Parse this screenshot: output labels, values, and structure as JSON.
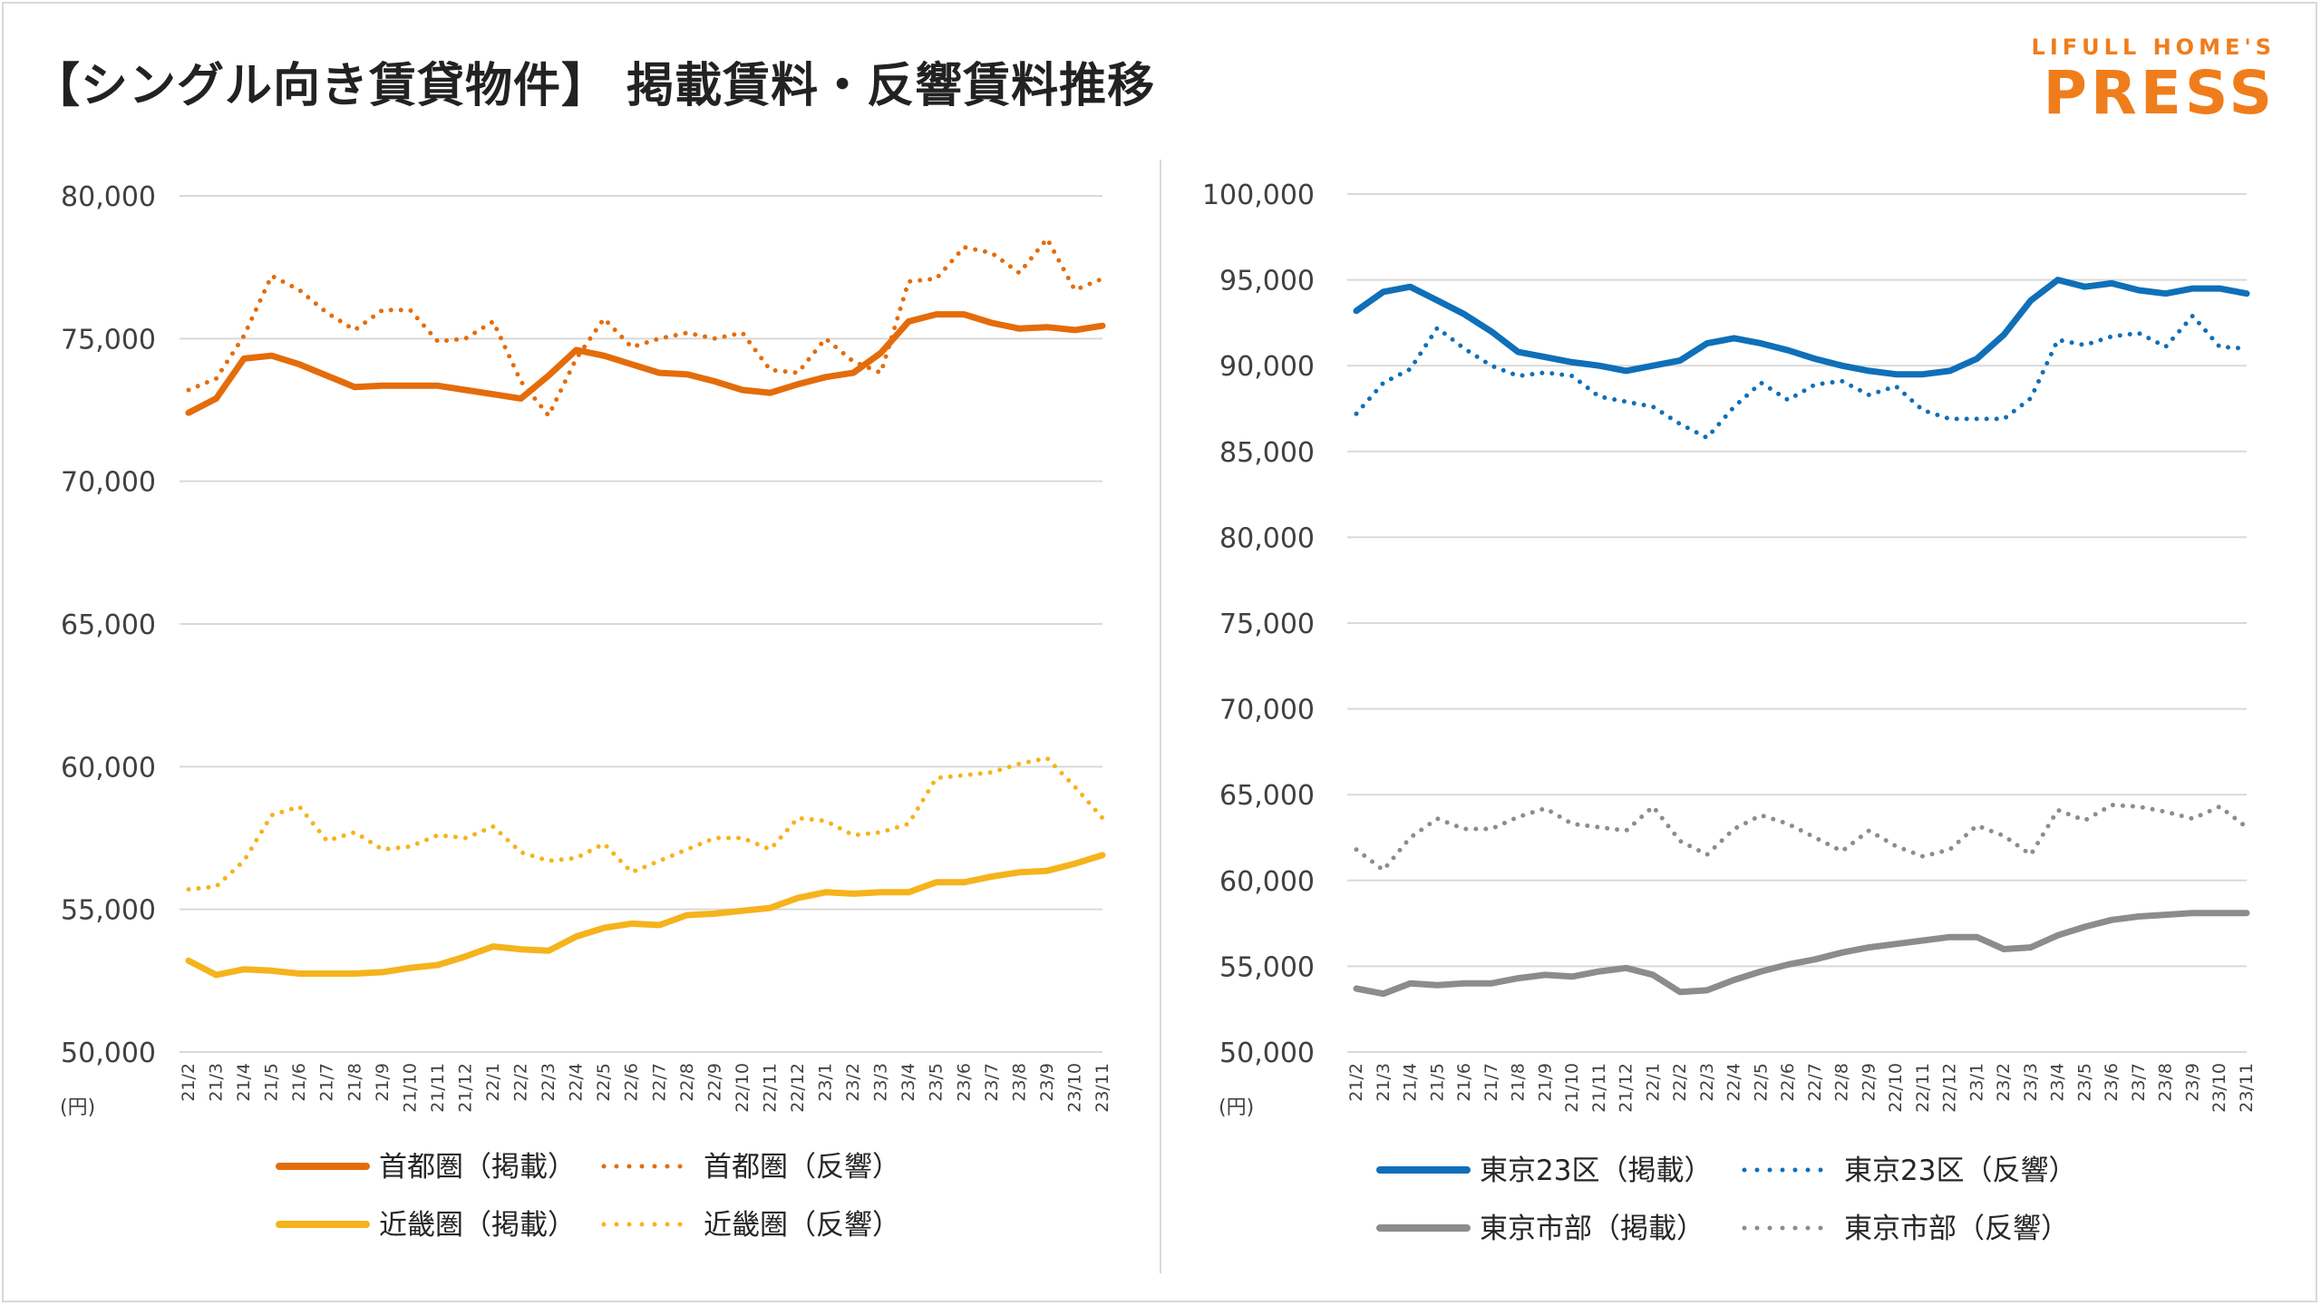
{
  "title": "【シングル向き賃貸物件】 掲載賃料・反響賃料推移",
  "logo": {
    "top": "LIFULL HOME'S",
    "main": "PRESS"
  },
  "colors": {
    "shuto": "#e46c0a",
    "kinki": "#f5b31c",
    "tokyo23": "#0f6fb8",
    "tokyoshi": "#8c8c8c",
    "grid": "#d9d9d9",
    "axis_text": "#404040"
  },
  "chart_data": [
    {
      "type": "line",
      "unit": "(円)",
      "ylim": [
        50000,
        80000
      ],
      "yticks": [
        50000,
        55000,
        60000,
        65000,
        70000,
        75000,
        80000
      ],
      "ytick_labels": [
        "50,000",
        "55,000",
        "60,000",
        "65,000",
        "70,000",
        "75,000",
        "80,000"
      ],
      "grid": true,
      "categories": [
        "21/2",
        "21/3",
        "21/4",
        "21/5",
        "21/6",
        "21/7",
        "21/8",
        "21/9",
        "21/10",
        "21/11",
        "21/12",
        "22/1",
        "22/2",
        "22/3",
        "22/4",
        "22/5",
        "22/6",
        "22/7",
        "22/8",
        "22/9",
        "22/10",
        "22/11",
        "22/12",
        "23/1",
        "23/2",
        "23/3",
        "23/4",
        "23/5",
        "23/6",
        "23/7",
        "23/8",
        "23/9",
        "23/10",
        "23/11"
      ],
      "series": [
        {
          "name": "首都圏（掲載）",
          "style": "solid",
          "color_key": "shuto",
          "values": [
            72400,
            72900,
            74300,
            74400,
            74100,
            73700,
            73300,
            73350,
            73350,
            73350,
            73200,
            73050,
            72900,
            73700,
            74600,
            74400,
            74100,
            73800,
            73750,
            73500,
            73200,
            73100,
            73400,
            73650,
            73800,
            74500,
            75600,
            75850,
            75850,
            75550,
            75350,
            75400,
            75300,
            75450
          ]
        },
        {
          "name": "首都圏（反響）",
          "style": "dotted",
          "color_key": "shuto",
          "values": [
            73200,
            73600,
            75100,
            77200,
            76700,
            75900,
            75300,
            76000,
            76000,
            74900,
            75000,
            75600,
            73500,
            72300,
            74300,
            75700,
            74700,
            75000,
            75200,
            75000,
            75200,
            73900,
            73800,
            75000,
            74200,
            73800,
            77000,
            77100,
            78200,
            78000,
            77300,
            78500,
            76700,
            77100
          ]
        },
        {
          "name": "近畿圏（掲載）",
          "style": "solid",
          "color_key": "kinki",
          "values": [
            53200,
            52700,
            52900,
            52850,
            52750,
            52750,
            52750,
            52800,
            52950,
            53050,
            53350,
            53700,
            53600,
            53550,
            54050,
            54350,
            54500,
            54450,
            54800,
            54850,
            54950,
            55050,
            55400,
            55600,
            55550,
            55600,
            55600,
            55950,
            55950,
            56150,
            56300,
            56350,
            56600,
            56900
          ]
        },
        {
          "name": "近畿圏（反響）",
          "style": "dotted",
          "color_key": "kinki",
          "values": [
            55700,
            55800,
            56700,
            58300,
            58600,
            57400,
            57700,
            57100,
            57200,
            57600,
            57500,
            57900,
            57000,
            56700,
            56800,
            57300,
            56300,
            56700,
            57100,
            57500,
            57500,
            57100,
            58200,
            58100,
            57600,
            57700,
            58000,
            59600,
            59700,
            59800,
            60100,
            60300,
            59300,
            58200
          ]
        }
      ]
    },
    {
      "type": "line",
      "unit": "(円)",
      "ylim": [
        50000,
        100000
      ],
      "yticks": [
        50000,
        55000,
        60000,
        65000,
        70000,
        75000,
        80000,
        85000,
        90000,
        95000,
        100000
      ],
      "ytick_labels": [
        "50,000",
        "55,000",
        "60,000",
        "65,000",
        "70,000",
        "75,000",
        "80,000",
        "85,000",
        "90,000",
        "95,000",
        "100,000"
      ],
      "grid": true,
      "categories": [
        "21/2",
        "21/3",
        "21/4",
        "21/5",
        "21/6",
        "21/7",
        "21/8",
        "21/9",
        "21/10",
        "21/11",
        "21/12",
        "22/1",
        "22/2",
        "22/3",
        "22/4",
        "22/5",
        "22/6",
        "22/7",
        "22/8",
        "22/9",
        "22/10",
        "22/11",
        "22/12",
        "23/1",
        "23/2",
        "23/3",
        "23/4",
        "23/5",
        "23/6",
        "23/7",
        "23/8",
        "23/9",
        "23/10",
        "23/11"
      ],
      "series": [
        {
          "name": "東京23区（掲載）",
          "style": "solid",
          "color_key": "tokyo23",
          "values": [
            93200,
            94300,
            94600,
            93800,
            93000,
            92000,
            90800,
            90500,
            90200,
            90000,
            89700,
            90000,
            90300,
            91300,
            91600,
            91300,
            90900,
            90400,
            90000,
            89700,
            89500,
            89500,
            89700,
            90400,
            91800,
            93800,
            95000,
            94600,
            94800,
            94400,
            94200,
            94500,
            94500,
            94200
          ]
        },
        {
          "name": "東京23区（反響）",
          "style": "dotted",
          "color_key": "tokyo23",
          "values": [
            87200,
            89000,
            89800,
            92200,
            91000,
            90000,
            89400,
            89600,
            89400,
            88200,
            87900,
            87600,
            86600,
            85800,
            87600,
            89000,
            88000,
            88900,
            89100,
            88300,
            88800,
            87400,
            86900,
            86900,
            86900,
            88100,
            91500,
            91200,
            91700,
            91900,
            91100,
            92900,
            91100,
            91000
          ]
        },
        {
          "name": "東京市部（掲載）",
          "style": "solid",
          "color_key": "tokyoshi",
          "values": [
            53700,
            53400,
            54000,
            53900,
            54000,
            54000,
            54300,
            54500,
            54400,
            54700,
            54900,
            54500,
            53500,
            53600,
            54200,
            54700,
            55100,
            55400,
            55800,
            56100,
            56300,
            56500,
            56700,
            56700,
            56000,
            56100,
            56800,
            57300,
            57700,
            57900,
            58000,
            58100,
            58100,
            58100
          ]
        },
        {
          "name": "東京市部（反響）",
          "style": "dotted",
          "color_key": "tokyoshi",
          "values": [
            61800,
            60600,
            62500,
            63600,
            63000,
            63000,
            63700,
            64200,
            63300,
            63100,
            62900,
            64300,
            62300,
            61500,
            63000,
            63800,
            63300,
            62500,
            61700,
            62900,
            62000,
            61400,
            61800,
            63200,
            62600,
            61500,
            64100,
            63500,
            64400,
            64300,
            64000,
            63600,
            64300,
            63100
          ]
        }
      ]
    }
  ]
}
